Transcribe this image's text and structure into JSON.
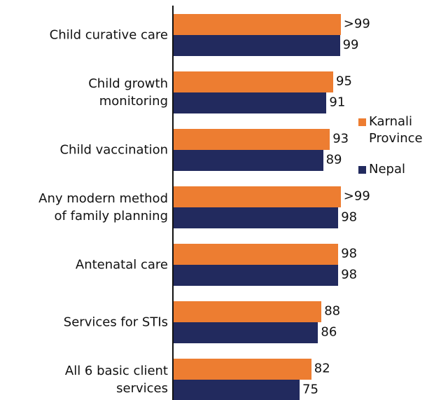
{
  "chart_data": {
    "type": "bar",
    "orientation": "horizontal",
    "categories": [
      "Child curative care",
      "Child growth\nmonitoring",
      "Child vaccination",
      "Any modern method\nof family planning",
      "Antenatal care",
      "Services for STIs",
      "All 6 basic client\nservices"
    ],
    "series": [
      {
        "name": "Karnali Province",
        "color": "#ED7D31",
        "values": [
          99.5,
          95,
          93,
          99.5,
          98,
          88,
          82
        ],
        "value_labels": [
          ">99",
          "95",
          "93",
          ">99",
          "98",
          "88",
          "82"
        ]
      },
      {
        "name": "Nepal",
        "color": "#222A5E",
        "values": [
          99,
          91,
          89,
          98,
          98,
          86,
          75
        ]
      }
    ],
    "xlim": [
      0,
      100
    ],
    "legend": "right"
  }
}
